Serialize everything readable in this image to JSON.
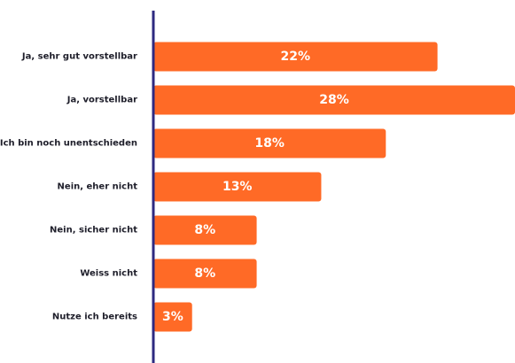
{
  "chart_data": {
    "type": "bar",
    "orientation": "horizontal",
    "categories": [
      "Ja, sehr gut vorstellbar",
      "Ja, vorstellbar",
      "Ich bin noch unentschieden",
      "Nein, eher nicht",
      "Nein, sicher nicht",
      "Weiss nicht",
      "Nutze ich bereits"
    ],
    "values": [
      22,
      28,
      18,
      13,
      8,
      8,
      3
    ],
    "value_labels": [
      "22%",
      "28%",
      "18%",
      "13%",
      "8%",
      "8%",
      "3%"
    ],
    "unit": "%",
    "xlim": [
      0,
      28
    ],
    "grid": false,
    "legend": "none",
    "colors": {
      "bar": "#FF6A26",
      "axis": "#2E2A80",
      "label": "#1E1E2A",
      "value_label": "#FFFFFF"
    }
  }
}
